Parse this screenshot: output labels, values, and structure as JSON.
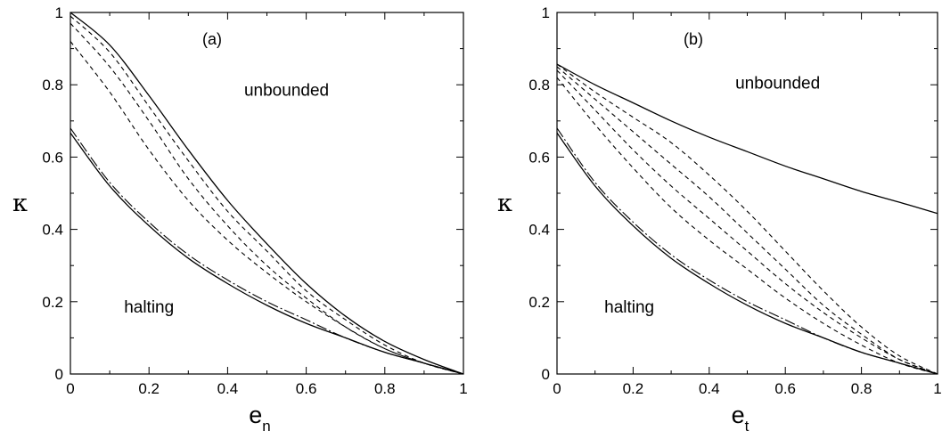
{
  "chart_data": [
    {
      "type": "line",
      "panel_label": "(a)",
      "xlabel": "e",
      "xlabel_sub": "n",
      "ylabel": "κ",
      "xlim": [
        0,
        1
      ],
      "ylim": [
        0,
        1
      ],
      "xticks": [
        0,
        0.2,
        0.4,
        0.6,
        0.8,
        1
      ],
      "xtick_labels": [
        "0",
        "0.2",
        "0.4",
        "0.6",
        "0.8",
        "1"
      ],
      "yticks": [
        0,
        0.2,
        0.4,
        0.6,
        0.8,
        1
      ],
      "ytick_labels": [
        "0",
        "0.2",
        "0.4",
        "0.6",
        "0.8",
        "1"
      ],
      "annotations": [
        {
          "text": "unbounded",
          "x": 0.55,
          "y": 0.77
        },
        {
          "text": "halting",
          "x": 0.2,
          "y": 0.17
        }
      ],
      "series": [
        {
          "style": "solid",
          "x": [
            0,
            0.1,
            0.2,
            0.3,
            0.4,
            0.5,
            0.6,
            0.7,
            0.8,
            0.9,
            1
          ],
          "y": [
            1.0,
            0.91,
            0.77,
            0.62,
            0.48,
            0.36,
            0.25,
            0.16,
            0.09,
            0.04,
            0
          ]
        },
        {
          "style": "dashed",
          "x": [
            0,
            0.1,
            0.2,
            0.3,
            0.4,
            0.5,
            0.6,
            0.7,
            0.8,
            0.9,
            1
          ],
          "y": [
            0.99,
            0.89,
            0.74,
            0.59,
            0.45,
            0.34,
            0.23,
            0.15,
            0.08,
            0.03,
            0
          ]
        },
        {
          "style": "dashed",
          "x": [
            0,
            0.1,
            0.2,
            0.3,
            0.4,
            0.5,
            0.6,
            0.7,
            0.8,
            0.9,
            1
          ],
          "y": [
            0.97,
            0.85,
            0.7,
            0.54,
            0.41,
            0.3,
            0.21,
            0.13,
            0.07,
            0.03,
            0
          ]
        },
        {
          "style": "dashed",
          "x": [
            0,
            0.1,
            0.2,
            0.3,
            0.4,
            0.5,
            0.6,
            0.7,
            0.8,
            0.9,
            1
          ],
          "y": [
            0.92,
            0.78,
            0.62,
            0.48,
            0.37,
            0.28,
            0.2,
            0.13,
            0.07,
            0.03,
            0
          ]
        },
        {
          "style": "dashdot",
          "x": [
            0,
            0.1,
            0.2,
            0.3,
            0.4,
            0.5,
            0.6,
            0.7,
            0.8,
            0.9,
            1
          ],
          "y": [
            0.68,
            0.53,
            0.42,
            0.33,
            0.26,
            0.2,
            0.15,
            0.1,
            0.06,
            0.03,
            0
          ]
        },
        {
          "style": "solid",
          "x": [
            0,
            0.1,
            0.2,
            0.3,
            0.4,
            0.5,
            0.6,
            0.7,
            0.8,
            0.9,
            1
          ],
          "y": [
            0.667,
            0.52,
            0.41,
            0.32,
            0.25,
            0.19,
            0.14,
            0.1,
            0.06,
            0.03,
            0
          ]
        }
      ]
    },
    {
      "type": "line",
      "panel_label": "(b)",
      "xlabel": "e",
      "xlabel_sub": "t",
      "ylabel": "κ",
      "xlim": [
        0,
        1
      ],
      "ylim": [
        0,
        1
      ],
      "xticks": [
        0,
        0.2,
        0.4,
        0.6,
        0.8,
        1
      ],
      "xtick_labels": [
        "0",
        "0.2",
        "0.4",
        "0.6",
        "0.8",
        "1"
      ],
      "yticks": [
        0,
        0.2,
        0.4,
        0.6,
        0.8,
        1
      ],
      "ytick_labels": [
        "0",
        "0.2",
        "0.4",
        "0.6",
        "0.8",
        "1"
      ],
      "annotations": [
        {
          "text": "unbounded",
          "x": 0.58,
          "y": 0.79
        },
        {
          "text": "halting",
          "x": 0.19,
          "y": 0.17
        }
      ],
      "series": [
        {
          "style": "solid",
          "x": [
            0,
            0.1,
            0.2,
            0.3,
            0.4,
            0.5,
            0.6,
            0.7,
            0.8,
            0.9,
            1
          ],
          "y": [
            0.857,
            0.8,
            0.75,
            0.7,
            0.655,
            0.615,
            0.575,
            0.54,
            0.505,
            0.475,
            0.444
          ]
        },
        {
          "style": "dashed",
          "x": [
            0,
            0.1,
            0.2,
            0.3,
            0.4,
            0.5,
            0.6,
            0.7,
            0.8,
            0.9,
            1
          ],
          "y": [
            0.857,
            0.78,
            0.71,
            0.64,
            0.55,
            0.45,
            0.34,
            0.23,
            0.13,
            0.05,
            0
          ]
        },
        {
          "style": "dashed",
          "x": [
            0,
            0.1,
            0.2,
            0.3,
            0.4,
            0.5,
            0.6,
            0.7,
            0.8,
            0.9,
            1
          ],
          "y": [
            0.85,
            0.76,
            0.67,
            0.58,
            0.49,
            0.39,
            0.29,
            0.19,
            0.11,
            0.04,
            0
          ]
        },
        {
          "style": "dashed",
          "x": [
            0,
            0.1,
            0.2,
            0.3,
            0.4,
            0.5,
            0.6,
            0.7,
            0.8,
            0.9,
            1
          ],
          "y": [
            0.84,
            0.73,
            0.62,
            0.52,
            0.43,
            0.34,
            0.25,
            0.17,
            0.1,
            0.04,
            0
          ]
        },
        {
          "style": "dashed",
          "x": [
            0,
            0.1,
            0.2,
            0.3,
            0.4,
            0.5,
            0.6,
            0.7,
            0.8,
            0.9,
            1
          ],
          "y": [
            0.82,
            0.69,
            0.57,
            0.46,
            0.37,
            0.29,
            0.21,
            0.14,
            0.08,
            0.03,
            0
          ]
        },
        {
          "style": "dashdot",
          "x": [
            0,
            0.1,
            0.2,
            0.3,
            0.4,
            0.5,
            0.6,
            0.7,
            0.8,
            0.9,
            1
          ],
          "y": [
            0.68,
            0.53,
            0.42,
            0.33,
            0.26,
            0.2,
            0.15,
            0.1,
            0.06,
            0.03,
            0
          ]
        },
        {
          "style": "solid",
          "x": [
            0,
            0.1,
            0.2,
            0.3,
            0.4,
            0.5,
            0.6,
            0.7,
            0.8,
            0.9,
            1
          ],
          "y": [
            0.667,
            0.52,
            0.41,
            0.32,
            0.25,
            0.19,
            0.14,
            0.1,
            0.06,
            0.03,
            0
          ]
        }
      ]
    }
  ]
}
